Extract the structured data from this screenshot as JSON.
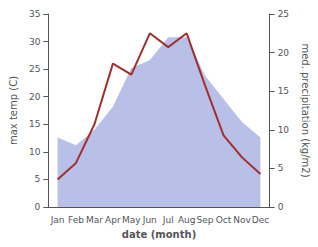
{
  "chart_data": {
    "type": "line",
    "xlabel": "date (month)",
    "ylabel": "max temp (C)",
    "y2label": "med. precipitation (kg/m2)",
    "categories": [
      "Jan",
      "Feb",
      "Mar",
      "Apr",
      "May",
      "Jun",
      "Jul",
      "Aug",
      "Sep",
      "Oct",
      "Nov",
      "Dec"
    ],
    "series": [
      {
        "type": "area",
        "color": "#b8c0e8",
        "axis": "y2",
        "values": [
          9,
          8,
          10,
          13,
          18,
          19,
          22,
          22,
          17,
          14,
          11,
          9
        ]
      },
      {
        "type": "line",
        "color": "#a03030",
        "values": [
          5,
          8,
          15,
          26,
          24,
          31.5,
          29,
          31.5,
          22,
          13,
          9,
          6
        ]
      }
    ],
    "ylim": [
      0,
      35
    ],
    "yticks": [
      0,
      5,
      10,
      15,
      20,
      25,
      30,
      35
    ],
    "y2lim": [
      0,
      25
    ],
    "y2ticks": [
      0,
      5,
      10,
      15,
      20,
      25
    ],
    "grid": false
  }
}
